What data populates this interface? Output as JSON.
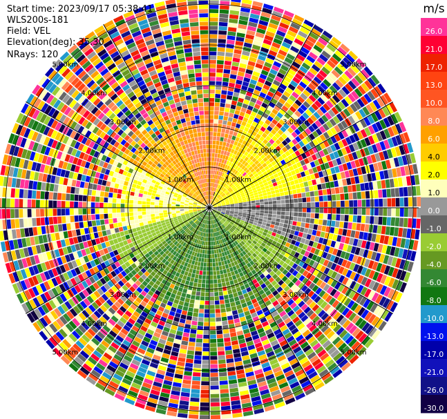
{
  "header": {
    "start_time": "Start time: 2023/09/17 05:38:41",
    "instrument": "WLS200s-181",
    "field": "Field: VEL",
    "elevation": "Elevation(deg): 35.30",
    "nrays": "NRays: 120"
  },
  "chart_data": {
    "type": "heatmap",
    "subtype": "ppi-polar",
    "field": "VEL",
    "units": "m/s",
    "range_rings_km": [
      1.0,
      2.0,
      3.0,
      4.0,
      5.0
    ],
    "ring_labels": [
      "1.00km",
      "2.00km",
      "3.00km",
      "4.00km",
      "5.00km"
    ],
    "nrays": 120,
    "colorbar": {
      "title": "m/s",
      "ticks": [
        "26.0",
        "21.0",
        "17.0",
        "13.0",
        "10.0",
        "8.0",
        "6.0",
        "4.0",
        "2.0",
        "1.0",
        "0.0",
        "-1.0",
        "-2.0",
        "-4.0",
        "-6.0",
        "-8.0",
        "-10.0",
        "-13.0",
        "-17.0",
        "-21.0",
        "-26.0",
        "-30.0"
      ],
      "colors": [
        "#ff3399",
        "#ff0033",
        "#ee2200",
        "#ff4411",
        "#ff5522",
        "#ff8855",
        "#ffa000",
        "#ffcc00",
        "#ffff00",
        "#ffffbb",
        "#999999",
        "#666666",
        "#99cc33",
        "#669922",
        "#338833",
        "#117711",
        "#2299cc",
        "#0011ee",
        "#0000aa",
        "#1111bb",
        "#111188",
        "#110044"
      ]
    },
    "pattern": {
      "north": "positive 4-8 m/s (orange)",
      "northeast": "positive ~2 m/s (yellow)",
      "east": "near zero (gray)",
      "south": "negative -4 to -8 m/s (green)",
      "west": "positive ~1-4 m/s (yellow)",
      "outer": "noise beyond ~2.6 km"
    }
  }
}
